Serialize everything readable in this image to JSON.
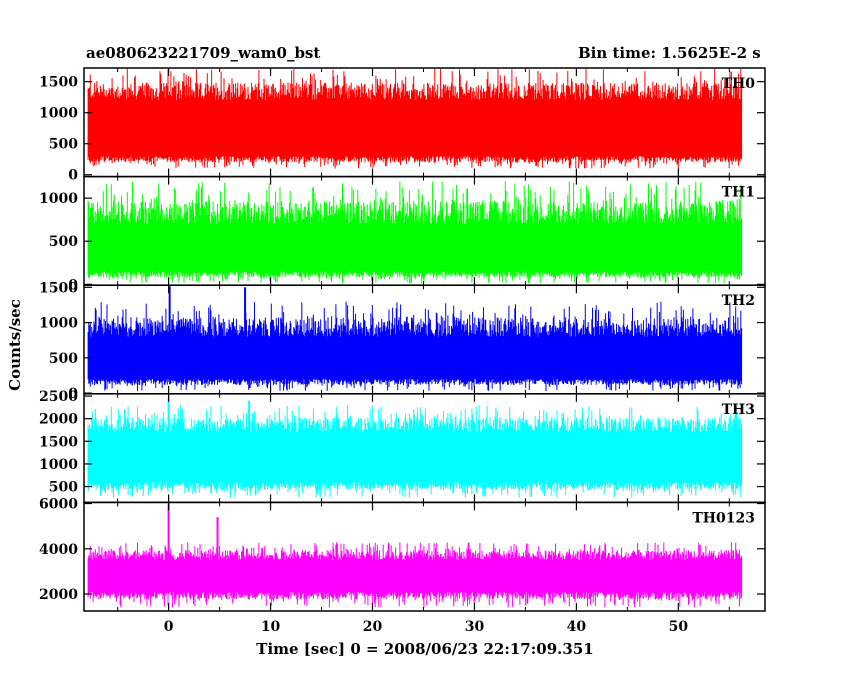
{
  "header": {
    "left_title": "ae080623221709_wam0_bst",
    "right_title": "Bin time: 1.5625E-2 s"
  },
  "chart_data": {
    "type": "line",
    "xlabel": "Time [sec] 0 = 2008/06/23 22:17:09.351",
    "ylabel": "Counts/sec",
    "xlim": [
      -8.3,
      58.5
    ],
    "x_ticks": [
      0,
      10,
      20,
      30,
      40,
      50
    ],
    "x_range": [
      -7.9,
      56.2
    ],
    "panels": [
      {
        "name": "TH0",
        "color": "#ff0000",
        "ylim": [
          -30,
          1720
        ],
        "y_ticks": [
          0,
          500,
          1000,
          1500
        ],
        "baseline_band": [
          300,
          1200
        ],
        "min_range": [
          100,
          300
        ],
        "peak_range": [
          1300,
          1720
        ],
        "spikes": []
      },
      {
        "name": "TH1",
        "color": "#00ff00",
        "ylim": [
          -10,
          1250
        ],
        "y_ticks": [
          0,
          500,
          1000
        ],
        "baseline_band": [
          150,
          700
        ],
        "min_range": [
          10,
          120
        ],
        "peak_range": [
          900,
          1200
        ],
        "spikes": []
      },
      {
        "name": "TH2",
        "color": "#0000ff",
        "ylim": [
          -10,
          1530
        ],
        "y_ticks": [
          0,
          500,
          1000,
          1500
        ],
        "baseline_band": [
          200,
          800
        ],
        "min_range": [
          30,
          150
        ],
        "peak_range": [
          1000,
          1300
        ],
        "spikes": [
          {
            "x": 0.1,
            "y": 1520
          },
          {
            "x": 7.5,
            "y": 1500
          }
        ]
      },
      {
        "name": "TH3",
        "color": "#00ffff",
        "ylim": [
          150,
          2550
        ],
        "y_ticks": [
          500,
          1000,
          1500,
          2000,
          2500
        ],
        "baseline_band": [
          600,
          1700
        ],
        "min_range": [
          250,
          500
        ],
        "peak_range": [
          1800,
          2300
        ],
        "spikes": [
          {
            "x": 0.0,
            "y": 2450
          },
          {
            "x": 7.9,
            "y": 2400
          }
        ]
      },
      {
        "name": "TH0123",
        "color": "#ff00ff",
        "ylim": [
          1250,
          6050
        ],
        "y_ticks": [
          2000,
          4000,
          6000
        ],
        "baseline_band": [
          2100,
          3500
        ],
        "min_range": [
          1400,
          1900
        ],
        "peak_range": [
          3800,
          4300
        ],
        "spikes": [
          {
            "x": 0.0,
            "y": 6000
          },
          {
            "x": 4.8,
            "y": 5400
          }
        ]
      }
    ]
  }
}
